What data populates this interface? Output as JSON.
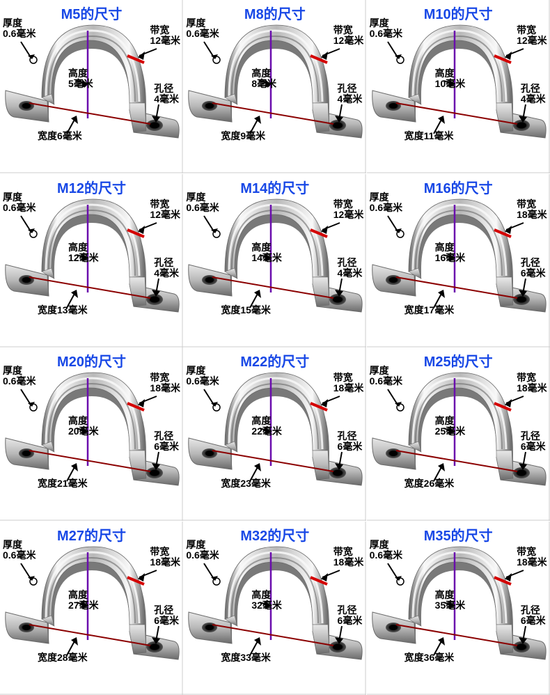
{
  "global": {
    "title_color": "#1848e6",
    "label_color": "#000000",
    "purple_line": "#6a0dad",
    "red_line": "#d40000",
    "dark_red_line": "#8b0000",
    "arrow_color": "#000000",
    "metal_light": "#e8e8e8",
    "metal_mid": "#b8b8b8",
    "metal_dark": "#6a6a6a",
    "metal_shine": "#f8f8f8",
    "hole_outer": "#555555",
    "hole_inner": "#222222",
    "thickness_label": "厚度",
    "bandwidth_label": "带宽",
    "height_label": "高度",
    "holedia_label": "孔径",
    "width_label": "宽度",
    "title_fontsize": 20,
    "label_fontsize": 14
  },
  "items": [
    {
      "title": "M5的尺寸",
      "thickness": "0.6毫米",
      "bandwidth": "12毫米",
      "height": "5毫米",
      "holedia": "4毫米",
      "width": "6毫米"
    },
    {
      "title": "M8的尺寸",
      "thickness": "0.6毫米",
      "bandwidth": "12毫米",
      "height": "8毫米",
      "holedia": "4毫米",
      "width": "9毫米"
    },
    {
      "title": "M10的尺寸",
      "thickness": "0.6毫米",
      "bandwidth": "12毫米",
      "height": "10毫米",
      "holedia": "4毫米",
      "width": "11毫米"
    },
    {
      "title": "M12的尺寸",
      "thickness": "0.6毫米",
      "bandwidth": "12毫米",
      "height": "12毫米",
      "holedia": "4毫米",
      "width": "13毫米"
    },
    {
      "title": "M14的尺寸",
      "thickness": "0.6毫米",
      "bandwidth": "12毫米",
      "height": "14毫米",
      "holedia": "4毫米",
      "width": "15毫米"
    },
    {
      "title": "M16的尺寸",
      "thickness": "0.6毫米",
      "bandwidth": "18毫米",
      "height": "16毫米",
      "holedia": "6毫米",
      "width": "17毫米"
    },
    {
      "title": "M20的尺寸",
      "thickness": "0.6毫米",
      "bandwidth": "18毫米",
      "height": "20毫米",
      "holedia": "6毫米",
      "width": "21毫米"
    },
    {
      "title": "M22的尺寸",
      "thickness": "0.6毫米",
      "bandwidth": "18毫米",
      "height": "22毫米",
      "holedia": "6毫米",
      "width": "23毫米"
    },
    {
      "title": "M25的尺寸",
      "thickness": "0.6毫米",
      "bandwidth": "18毫米",
      "height": "25毫米",
      "holedia": "6毫米",
      "width": "26毫米"
    },
    {
      "title": "M27的尺寸",
      "thickness": "0.6毫米",
      "bandwidth": "18毫米",
      "height": "27毫米",
      "holedia": "6毫米",
      "width": "28毫米"
    },
    {
      "title": "M32的尺寸",
      "thickness": "0.6毫米",
      "bandwidth": "18毫米",
      "height": "32毫米",
      "holedia": "6毫米",
      "width": "33毫米"
    },
    {
      "title": "M35的尺寸",
      "thickness": "0.6毫米",
      "bandwidth": "18毫米",
      "height": "35毫米",
      "holedia": "6毫米",
      "width": "36毫米"
    }
  ]
}
